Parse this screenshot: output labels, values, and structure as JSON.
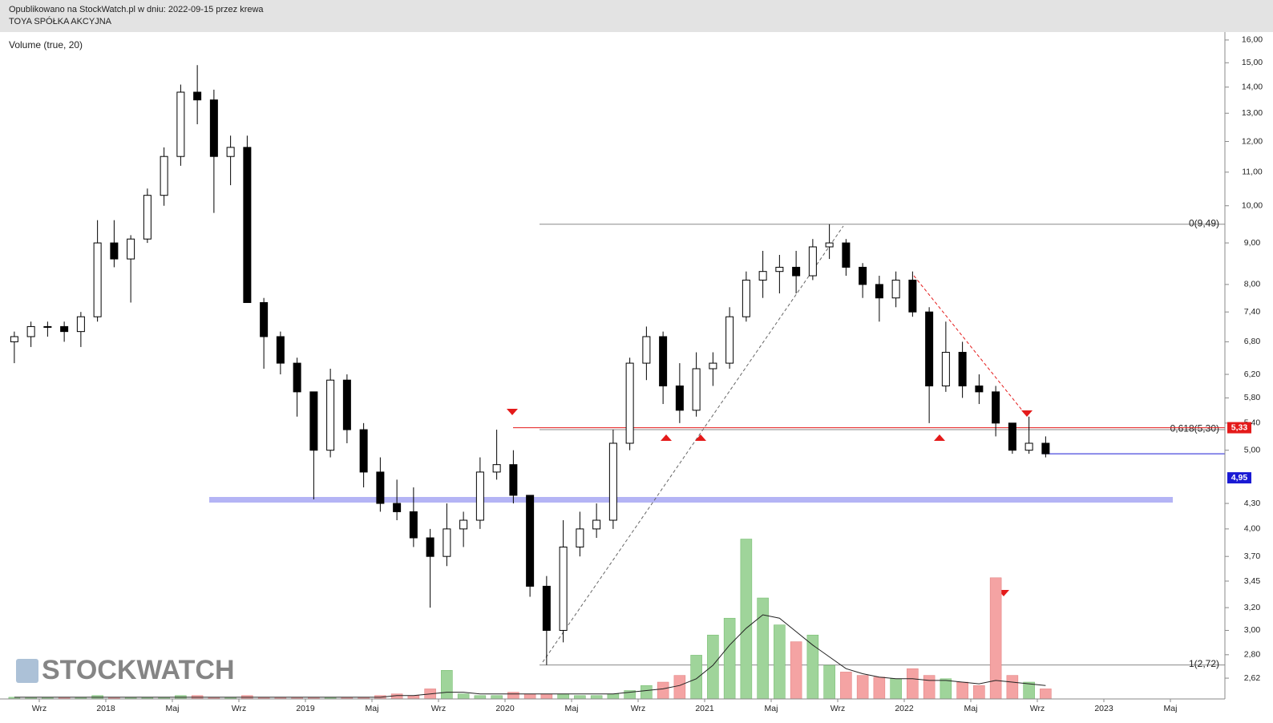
{
  "chart_data": {
    "type": "candlestick",
    "header": "Opublikowano na StockWatch.pl w dniu: 2022-09-15 przez krewa",
    "title": "TOYA SPÓŁKA AKCYJNA",
    "subtitle": "Volume (true, 20)",
    "watermark": "STOCKWATCH",
    "log_scale": true,
    "ylim": [
      2.47,
      16.29
    ],
    "yticks": [
      {
        "value": 16,
        "label": "16,00"
      },
      {
        "value": 15,
        "label": "15,00"
      },
      {
        "value": 14,
        "label": "14,00"
      },
      {
        "value": 13,
        "label": "13,00"
      },
      {
        "value": 12,
        "label": "12,00"
      },
      {
        "value": 11,
        "label": "11,00"
      },
      {
        "value": 10,
        "label": "10,00"
      },
      {
        "value": 9,
        "label": "9,00"
      },
      {
        "value": 8,
        "label": "8,00"
      },
      {
        "value": 7.4,
        "label": "7,40"
      },
      {
        "value": 6.8,
        "label": "6,80"
      },
      {
        "value": 6.2,
        "label": "6,20"
      },
      {
        "value": 5.8,
        "label": "5,80"
      },
      {
        "value": 5.4,
        "label": "5,40"
      },
      {
        "value": 5,
        "label": "5,00"
      },
      {
        "value": 4.3,
        "label": "4,30"
      },
      {
        "value": 4,
        "label": "4,00"
      },
      {
        "value": 3.7,
        "label": "3,70"
      },
      {
        "value": 3.45,
        "label": "3,45"
      },
      {
        "value": 3.2,
        "label": "3,20"
      },
      {
        "value": 3,
        "label": "3,00"
      },
      {
        "value": 2.8,
        "label": "2,80"
      },
      {
        "value": 2.62,
        "label": "2,62"
      }
    ],
    "xticks": [
      {
        "value": "2017-09",
        "label": "Wrz"
      },
      {
        "value": "2018-01",
        "label": "2018"
      },
      {
        "value": "2018-05",
        "label": "Maj"
      },
      {
        "value": "2018-09",
        "label": "Wrz"
      },
      {
        "value": "2019-01",
        "label": "2019"
      },
      {
        "value": "2019-05",
        "label": "Maj"
      },
      {
        "value": "2019-09",
        "label": "Wrz"
      },
      {
        "value": "2020-01",
        "label": "2020"
      },
      {
        "value": "2020-05",
        "label": "Maj"
      },
      {
        "value": "2020-09",
        "label": "Wrz"
      },
      {
        "value": "2021-01",
        "label": "2021"
      },
      {
        "value": "2021-05",
        "label": "Maj"
      },
      {
        "value": "2021-09",
        "label": "Wrz"
      },
      {
        "value": "2022-01",
        "label": "2022"
      },
      {
        "value": "2022-05",
        "label": "Maj"
      },
      {
        "value": "2022-09",
        "label": "Wrz"
      },
      {
        "value": "2023-01",
        "label": "2023"
      },
      {
        "value": "2023-05",
        "label": "Maj"
      }
    ],
    "x": [
      "2017-07",
      "2017-08",
      "2017-09",
      "2017-10",
      "2017-11",
      "2017-12",
      "2018-01",
      "2018-02",
      "2018-03",
      "2018-04",
      "2018-05",
      "2018-06",
      "2018-07",
      "2018-08",
      "2018-09",
      "2018-10",
      "2018-11",
      "2018-12",
      "2019-01",
      "2019-02",
      "2019-03",
      "2019-04",
      "2019-05",
      "2019-06",
      "2019-07",
      "2019-08",
      "2019-09",
      "2019-10",
      "2019-11",
      "2019-12",
      "2020-01",
      "2020-02",
      "2020-03",
      "2020-04",
      "2020-05",
      "2020-06",
      "2020-07",
      "2020-08",
      "2020-09",
      "2020-10",
      "2020-11",
      "2020-12",
      "2021-01",
      "2021-02",
      "2021-03",
      "2021-04",
      "2021-05",
      "2021-06",
      "2021-07",
      "2021-08",
      "2021-09",
      "2021-10",
      "2021-11",
      "2021-12",
      "2022-01",
      "2022-02",
      "2022-03",
      "2022-04",
      "2022-05",
      "2022-06",
      "2022-07",
      "2022-08",
      "2022-09"
    ],
    "open": [
      6.8,
      6.9,
      7.1,
      7.1,
      7.0,
      7.3,
      9.0,
      8.6,
      9.1,
      10.3,
      11.5,
      13.8,
      13.5,
      11.5,
      11.8,
      7.6,
      6.9,
      6.4,
      5.9,
      5.0,
      6.1,
      5.3,
      4.7,
      4.3,
      4.2,
      3.9,
      3.7,
      4.0,
      4.1,
      4.7,
      4.8,
      4.4,
      3.4,
      3.0,
      3.8,
      4.0,
      4.1,
      5.1,
      6.4,
      6.9,
      6.0,
      5.6,
      6.3,
      6.4,
      7.3,
      8.1,
      8.3,
      8.4,
      8.2,
      8.9,
      9.0,
      8.4,
      8.0,
      7.7,
      8.1,
      7.4,
      6.0,
      6.6,
      6.0,
      5.9,
      5.4,
      5.0,
      5.1
    ],
    "high": [
      7.0,
      7.2,
      7.2,
      7.2,
      7.4,
      9.6,
      9.6,
      9.2,
      10.5,
      11.8,
      14.1,
      14.9,
      13.9,
      12.2,
      12.2,
      7.7,
      7.0,
      6.5,
      5.9,
      6.3,
      6.2,
      5.4,
      4.9,
      4.6,
      4.5,
      4.0,
      4.3,
      4.2,
      4.9,
      5.3,
      5.0,
      4.4,
      3.5,
      4.1,
      4.2,
      4.3,
      5.3,
      6.5,
      7.1,
      7.0,
      6.4,
      6.6,
      6.6,
      7.5,
      8.3,
      8.8,
      8.7,
      8.8,
      9.1,
      9.49,
      9.1,
      8.5,
      8.2,
      8.3,
      8.3,
      7.5,
      7.2,
      6.8,
      6.2,
      6.0,
      5.4,
      5.5,
      5.2
    ],
    "low": [
      6.4,
      6.7,
      6.9,
      6.8,
      6.7,
      7.2,
      8.4,
      7.6,
      9.0,
      10.0,
      11.2,
      12.6,
      9.8,
      10.6,
      7.6,
      6.3,
      6.2,
      5.5,
      4.35,
      4.9,
      5.1,
      4.5,
      4.2,
      4.1,
      3.8,
      3.2,
      3.6,
      3.8,
      4.0,
      4.6,
      4.3,
      3.3,
      2.72,
      2.9,
      3.7,
      3.9,
      4.0,
      5.0,
      6.1,
      5.7,
      5.4,
      5.5,
      6.0,
      6.3,
      7.2,
      7.7,
      7.8,
      7.8,
      8.1,
      8.6,
      8.2,
      7.7,
      7.2,
      7.5,
      7.3,
      5.4,
      5.9,
      5.8,
      5.7,
      5.2,
      4.95,
      4.95,
      4.9
    ],
    "close": [
      6.9,
      7.1,
      7.1,
      7.0,
      7.3,
      9.0,
      8.6,
      9.1,
      10.3,
      11.5,
      13.8,
      13.5,
      11.5,
      11.8,
      7.6,
      6.9,
      6.4,
      5.9,
      5.0,
      6.1,
      5.3,
      4.7,
      4.3,
      4.2,
      3.9,
      3.7,
      4.0,
      4.1,
      4.7,
      4.8,
      4.4,
      3.4,
      3.0,
      3.8,
      4.0,
      4.1,
      5.1,
      6.4,
      6.9,
      6.0,
      5.6,
      6.3,
      6.4,
      7.3,
      8.1,
      8.3,
      8.4,
      8.2,
      8.9,
      9.0,
      8.4,
      8.0,
      7.7,
      8.1,
      7.4,
      6.0,
      6.6,
      6.0,
      5.9,
      5.4,
      5.0,
      5.1,
      4.95
    ],
    "up_color": "#ffffff",
    "down_color": "#000000",
    "volume_lim": [
      0,
      100
    ],
    "volume": [
      1,
      1,
      1,
      1,
      1,
      2,
      1,
      1,
      1,
      1,
      2,
      2,
      1,
      1,
      2,
      1,
      1,
      1,
      1,
      1,
      1,
      1,
      2,
      3,
      2,
      6,
      17,
      3,
      2,
      2,
      4,
      3,
      3,
      3,
      2,
      2,
      3,
      5,
      8,
      10,
      14,
      26,
      38,
      48,
      95,
      60,
      44,
      34,
      38,
      20,
      16,
      14,
      13,
      12,
      18,
      14,
      12,
      10,
      8,
      72,
      14,
      10,
      6
    ],
    "volume_ma": [
      1,
      1,
      1,
      1,
      1,
      1,
      1,
      1,
      1,
      1,
      1,
      1,
      1,
      1,
      1,
      1,
      1,
      1,
      1,
      1,
      1,
      1,
      1,
      2,
      2,
      3,
      4,
      4,
      3,
      3,
      3,
      3,
      3,
      3,
      3,
      3,
      3,
      4,
      5,
      6,
      8,
      12,
      20,
      32,
      42,
      50,
      48,
      40,
      32,
      25,
      18,
      15,
      13,
      12,
      12,
      11,
      11,
      10,
      9,
      11,
      10,
      9,
      8
    ],
    "volume_up_color": "#9fd49a",
    "volume_down_color": "#f4a3a3",
    "levels": [
      {
        "label": "0(9,49)",
        "value": 9.49
      },
      {
        "label": "0,618(5,30)",
        "value": 5.3
      },
      {
        "label": "1(2,72)",
        "value": 2.72
      }
    ],
    "badges": [
      {
        "label": "5,33",
        "value": 5.33,
        "color": "#e41a1a"
      },
      {
        "label": "4,95",
        "value": 4.95,
        "color": "#1a1ad4"
      }
    ]
  }
}
